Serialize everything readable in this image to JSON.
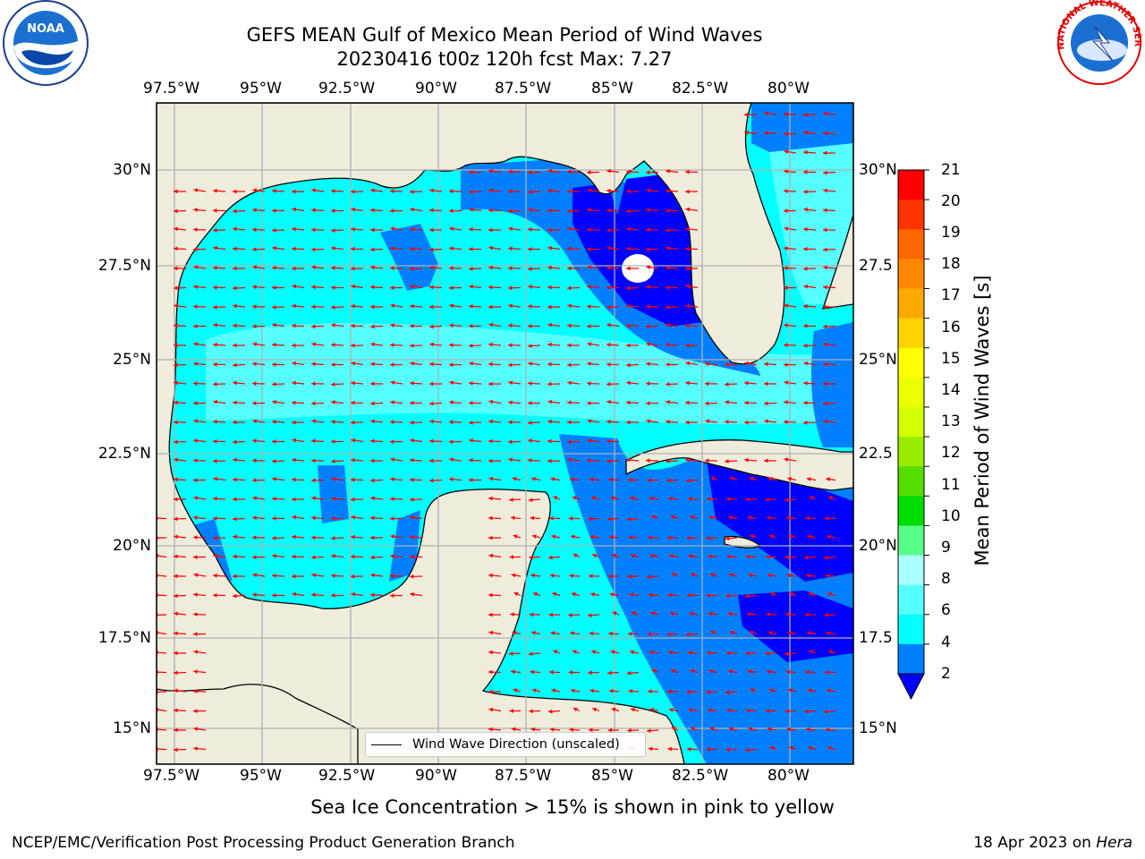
{
  "title": {
    "line1": "GEFS MEAN Gulf of Mexico Mean Period of Wind Waves",
    "line2": "20230416 t00z 120h fcst   Max: 7.27"
  },
  "logos": {
    "noaa_text": "NOAA",
    "nws_text": "NATIONAL WEATHER SERVICE"
  },
  "map": {
    "lon_ticks_top": [
      "97.5°W",
      "95°W",
      "92.5°W",
      "90°W",
      "87.5°W",
      "85°W",
      "82.5°W",
      "80°W"
    ],
    "lon_ticks_bottom": [
      "97.5°W",
      "95°W",
      "92.5°W",
      "90°W",
      "87.5°W",
      "85°W",
      "82.5°W",
      "80°W"
    ],
    "lat_ticks_left": [
      "30°N",
      "27.5°N",
      "25°N",
      "22.5°N",
      "20°N",
      "17.5°N",
      "15°N"
    ],
    "lat_ticks_right": [
      "30°N",
      "27.5",
      "25°N",
      "22.5",
      "20°N",
      "17.5",
      "15°N"
    ],
    "lon_range": [
      -98,
      -78.2
    ],
    "lat_range": [
      14,
      31.6
    ],
    "land_color": "#efecdc",
    "arrow_color": "#ff0000",
    "legend_label": "Wind Wave Direction (unscaled)"
  },
  "colorbar": {
    "label": "Mean Period of Wind Waves [s]",
    "ticks": [
      "21",
      "20",
      "19",
      "18",
      "17",
      "16",
      "15",
      "14",
      "13",
      "12",
      "11",
      "10",
      "9",
      "8",
      "6",
      "4",
      "2"
    ],
    "colors": [
      "#ff0000",
      "#ff3300",
      "#ff6600",
      "#ff8800",
      "#ffaa00",
      "#ffd200",
      "#ffff00",
      "#eaff00",
      "#d2ff00",
      "#99ee00",
      "#55dd00",
      "#00dd00",
      "#55ff88",
      "#aaffff",
      "#55ffff",
      "#00ffff",
      "#0080ff",
      "#0000ff"
    ]
  },
  "footer": {
    "note": "Sea Ice Concentration > 15% is shown in pink to yellow",
    "credit": "NCEP/EMC/Verification Post Processing Product Generation Branch",
    "date": "18 Apr 2023 on ",
    "machine": "Hera"
  }
}
